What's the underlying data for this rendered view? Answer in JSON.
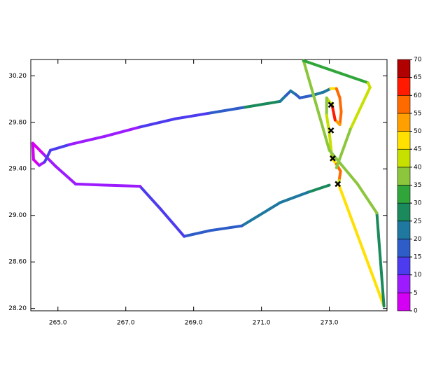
{
  "chart_data": {
    "type": "track",
    "x": [
      273.0,
      272.38,
      271.55,
      270.42,
      269.49,
      268.72,
      268.04,
      267.42,
      266.39,
      265.52,
      264.94,
      264.53,
      264.26,
      264.28,
      264.45,
      264.61,
      264.78,
      265.36,
      266.39,
      267.42,
      268.45,
      269.49,
      270.52,
      271.55,
      271.72,
      271.86,
      272.01,
      272.13,
      272.48,
      272.83,
      273.04,
      273.21,
      273.31,
      273.35,
      273.31,
      273.17,
      273.08,
      272.92,
      272.92,
      273.0,
      273.08,
      273.21,
      273.33,
      273.29,
      273.27,
      274.61,
      274.4,
      273.83,
      273.0,
      272.24,
      274.14,
      274.2,
      273.62,
      273.21
    ],
    "y": [
      29.26,
      29.2,
      29.11,
      28.91,
      28.87,
      28.82,
      29.05,
      29.25,
      29.26,
      29.27,
      29.42,
      29.54,
      29.62,
      29.48,
      29.43,
      29.46,
      29.56,
      29.61,
      29.68,
      29.76,
      29.83,
      29.88,
      29.93,
      29.98,
      30.03,
      30.07,
      30.04,
      30.01,
      30.03,
      30.06,
      30.09,
      30.09,
      30.01,
      29.89,
      29.78,
      29.82,
      29.95,
      30.01,
      29.86,
      29.71,
      29.49,
      29.44,
      29.38,
      29.3,
      29.27,
      28.22,
      29.02,
      29.27,
      29.56,
      30.33,
      30.14,
      30.1,
      29.74,
      29.41
    ],
    "values": [
      25,
      22,
      20,
      17,
      15,
      12,
      10,
      8,
      7,
      6,
      5,
      4,
      2,
      4,
      7,
      10,
      12,
      8,
      8,
      10,
      13,
      17,
      25,
      22,
      18,
      20,
      18,
      18,
      20,
      22,
      45,
      58,
      55,
      55,
      50,
      60,
      40,
      38,
      40,
      42,
      45,
      55,
      55,
      40,
      45,
      28,
      35,
      35,
      35,
      32,
      42,
      40,
      35,
      38
    ],
    "markers": {
      "x": [
        273.05,
        273.05,
        273.1,
        273.25
      ],
      "y": [
        29.95,
        29.73,
        29.49,
        29.27
      ]
    },
    "xlim": [
      264.2,
      274.7
    ],
    "ylim": [
      28.18,
      30.34
    ],
    "xticks": [
      {
        "value": 265,
        "label": "265.0"
      },
      {
        "value": 267,
        "label": "267.0"
      },
      {
        "value": 269,
        "label": "269.0"
      },
      {
        "value": 271,
        "label": "271.0"
      },
      {
        "value": 273,
        "label": "273.0"
      }
    ],
    "yticks": [
      {
        "value": 28.2,
        "label": "28.20"
      },
      {
        "value": 28.6,
        "label": "28.60"
      },
      {
        "value": 29.0,
        "label": "29.00"
      },
      {
        "value": 29.4,
        "label": "29.40"
      },
      {
        "value": 29.8,
        "label": "29.80"
      },
      {
        "value": 30.2,
        "label": "30.20"
      }
    ],
    "colorbar": {
      "levels": [
        0,
        5,
        10,
        15,
        20,
        25,
        30,
        35,
        40,
        45,
        50,
        55,
        60,
        65,
        70
      ],
      "colors": [
        "#d400f4",
        "#9c1cff",
        "#4d3bef",
        "#2e5dc8",
        "#1e78a0",
        "#1a8a5c",
        "#30a63a",
        "#8cc63c",
        "#c8e000",
        "#ffe000",
        "#ffa000",
        "#ff6a00",
        "#ff1a00",
        "#b00000"
      ]
    }
  }
}
